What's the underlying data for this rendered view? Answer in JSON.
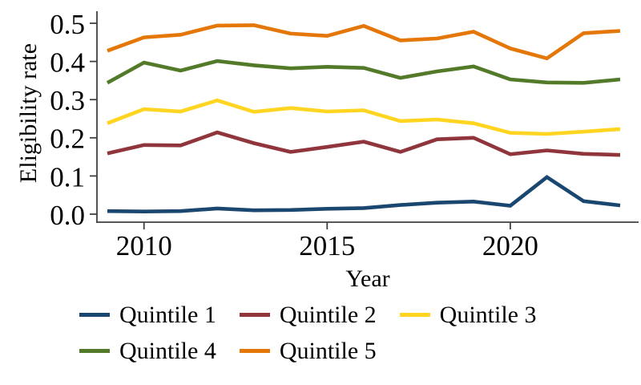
{
  "figure": {
    "background": "#ffffff",
    "axis_color": "#404040",
    "text_color": "#000000"
  },
  "chart_data": {
    "type": "line",
    "title": "",
    "xlabel": "Year",
    "ylabel": "Eligibility rate",
    "x": [
      2009,
      2010,
      2011,
      2012,
      2013,
      2014,
      2015,
      2016,
      2017,
      2018,
      2019,
      2020,
      2021,
      2022,
      2023
    ],
    "x_ticks": [
      2010,
      2015,
      2020
    ],
    "y_ticks": [
      0.0,
      0.1,
      0.2,
      0.3,
      0.4,
      0.5
    ],
    "ylim": [
      0,
      0.5
    ],
    "xlim": [
      2008.7,
      2023.5
    ],
    "grid": false,
    "legend_position": "bottom-left-two-rows",
    "series": [
      {
        "name": "Quintile 1",
        "color": "#1a476f",
        "values": [
          0.008,
          0.007,
          0.008,
          0.015,
          0.01,
          0.011,
          0.014,
          0.016,
          0.024,
          0.03,
          0.033,
          0.022,
          0.097,
          0.034,
          0.023
        ]
      },
      {
        "name": "Quintile 2",
        "color": "#90353b",
        "values": [
          0.159,
          0.181,
          0.18,
          0.214,
          0.186,
          0.163,
          0.176,
          0.19,
          0.163,
          0.196,
          0.2,
          0.157,
          0.167,
          0.158,
          0.155
        ]
      },
      {
        "name": "Quintile 3",
        "color": "#ffd521",
        "values": [
          0.238,
          0.275,
          0.269,
          0.298,
          0.268,
          0.278,
          0.269,
          0.272,
          0.244,
          0.248,
          0.238,
          0.213,
          0.21,
          0.216,
          0.223
        ]
      },
      {
        "name": "Quintile 4",
        "color": "#527a29",
        "values": [
          0.344,
          0.397,
          0.376,
          0.401,
          0.39,
          0.382,
          0.386,
          0.383,
          0.357,
          0.374,
          0.387,
          0.353,
          0.345,
          0.344,
          0.353
        ]
      },
      {
        "name": "Quintile 5",
        "color": "#e57709",
        "values": [
          0.428,
          0.463,
          0.47,
          0.494,
          0.495,
          0.473,
          0.467,
          0.493,
          0.455,
          0.46,
          0.478,
          0.434,
          0.408,
          0.474,
          0.48
        ]
      }
    ]
  }
}
